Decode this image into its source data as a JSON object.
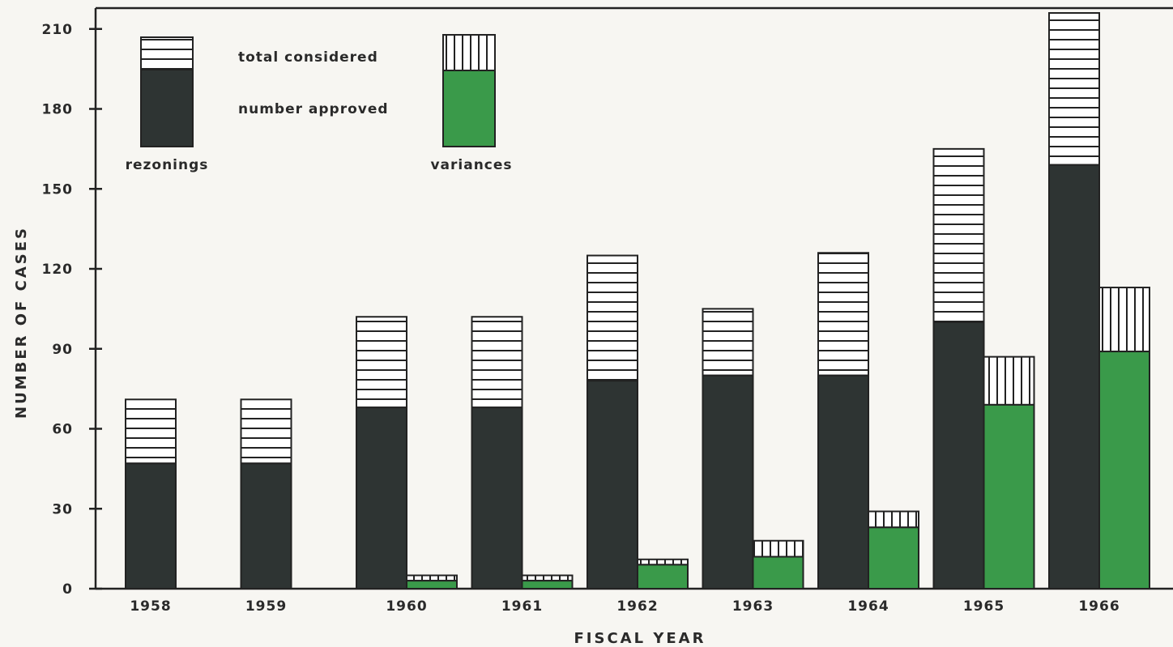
{
  "chart_data": {
    "type": "bar",
    "title": "",
    "xlabel": "FISCAL YEAR",
    "ylabel": "NUMBER OF CASES",
    "ylim": [
      0,
      216
    ],
    "yticks": [
      0,
      30,
      60,
      90,
      120,
      150,
      180,
      210
    ],
    "categories": [
      "1958",
      "1959",
      "1960",
      "1961",
      "1962",
      "1963",
      "1964",
      "1965",
      "1966"
    ],
    "rezonings": {
      "name": "rezonings",
      "total_considered": [
        71,
        71,
        102,
        102,
        125,
        105,
        126,
        165,
        216
      ],
      "number_approved": [
        47,
        47,
        68,
        68,
        78,
        80,
        80,
        100,
        159
      ]
    },
    "variances": {
      "name": "variances",
      "total_considered": [
        null,
        null,
        5,
        5,
        11,
        18,
        29,
        87,
        113
      ],
      "number_approved": [
        null,
        null,
        3,
        3,
        9,
        12,
        23,
        69,
        89
      ]
    },
    "legend": {
      "total_label": "total considered",
      "approved_label": "number approved",
      "rezonings_label": "rezonings",
      "variances_label": "variances",
      "placement": "top-left"
    },
    "colors": {
      "rezonings_approved": "#2e3433",
      "variances_approved": "#3a9a4a",
      "hatch_line": "#222222",
      "background": "#f7f6f2"
    },
    "grid": false
  }
}
